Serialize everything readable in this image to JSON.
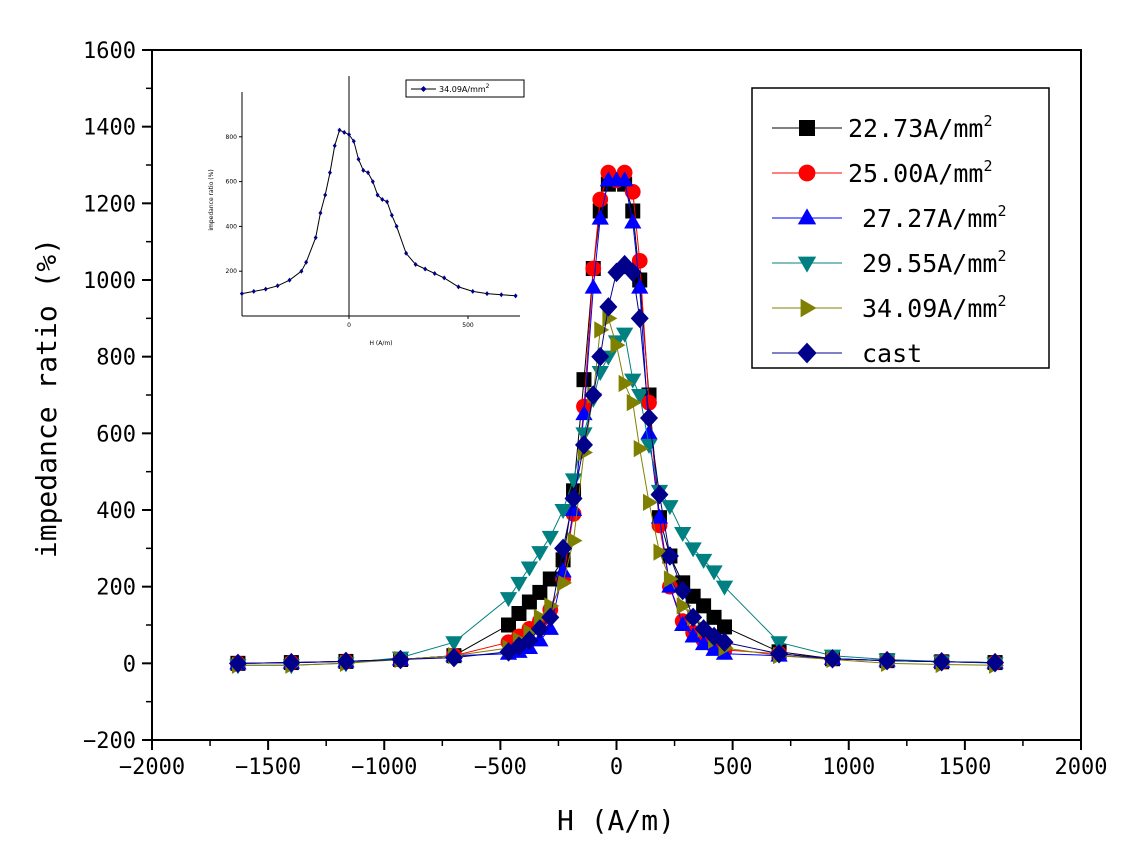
{
  "chart_data": {
    "type": "line",
    "xlabel": "H  (A/m)",
    "ylabel": "impedance ratio (%)",
    "xlim": [
      -2000,
      2000
    ],
    "ylim": [
      -200,
      1600
    ],
    "xticks": [
      -2000,
      -1500,
      -1000,
      -500,
      0,
      500,
      1000,
      1500,
      2000
    ],
    "yticks": [
      -200,
      0,
      200,
      400,
      600,
      800,
      1000,
      1200,
      1400,
      1600
    ],
    "xtick_labels": [
      "−2000",
      "−1500",
      "−1000",
      "−500",
      "0",
      "500",
      "1000",
      "1500",
      "2000"
    ],
    "ytick_labels": [
      "−200",
      "0",
      "200",
      "400",
      "600",
      "800",
      "1000",
      "1200",
      "1400",
      "1600"
    ],
    "legend_position": "top-right",
    "series": [
      {
        "name": "22.73A/mm",
        "superscript": "2",
        "color": "#000000",
        "marker": "square",
        "x": [
          -1630,
          -1400,
          -1165,
          -930,
          -700,
          -465,
          -420,
          -375,
          -330,
          -285,
          -230,
          -185,
          -140,
          -100,
          -70,
          -35,
          0,
          35,
          70,
          100,
          140,
          185,
          230,
          285,
          330,
          375,
          420,
          465,
          700,
          930,
          1165,
          1400,
          1630
        ],
        "y": [
          0,
          2,
          5,
          10,
          20,
          100,
          130,
          160,
          185,
          220,
          270,
          450,
          740,
          1030,
          1180,
          1250,
          1260,
          1250,
          1180,
          1000,
          700,
          380,
          280,
          210,
          175,
          150,
          120,
          95,
          30,
          12,
          7,
          4,
          2
        ]
      },
      {
        "name": "25.00A/mm",
        "superscript": "2",
        "color": "#ff0000",
        "marker": "circle",
        "x": [
          -1630,
          -1400,
          -1165,
          -930,
          -700,
          -465,
          -420,
          -375,
          -330,
          -285,
          -230,
          -185,
          -140,
          -100,
          -70,
          -35,
          0,
          35,
          70,
          100,
          140,
          185,
          230,
          285,
          330,
          375,
          420,
          465,
          700,
          930,
          1165,
          1400,
          1630
        ],
        "y": [
          0,
          2,
          5,
          10,
          20,
          55,
          70,
          90,
          110,
          140,
          220,
          390,
          670,
          1030,
          1210,
          1280,
          1260,
          1280,
          1230,
          1050,
          680,
          360,
          200,
          110,
          80,
          60,
          45,
          35,
          25,
          12,
          7,
          4,
          2
        ]
      },
      {
        "name": "27.27A/mm",
        "superscript": "2",
        "color": "#0000ff",
        "marker": "triangle-up",
        "x": [
          -1630,
          -1400,
          -1165,
          -930,
          -700,
          -465,
          -420,
          -375,
          -330,
          -285,
          -230,
          -185,
          -140,
          -100,
          -70,
          -35,
          0,
          35,
          70,
          100,
          140,
          185,
          230,
          285,
          330,
          375,
          420,
          465,
          700,
          930,
          1165,
          1400,
          1630
        ],
        "y": [
          0,
          2,
          5,
          10,
          20,
          25,
          30,
          40,
          60,
          90,
          240,
          400,
          650,
          980,
          1160,
          1260,
          1260,
          1260,
          1150,
          980,
          600,
          380,
          200,
          100,
          70,
          50,
          35,
          25,
          20,
          12,
          7,
          4,
          2
        ]
      },
      {
        "name": "29.55A/mm",
        "superscript": "2",
        "color": "#008080",
        "marker": "triangle-down",
        "x": [
          -1630,
          -1400,
          -1165,
          -930,
          -700,
          -465,
          -420,
          -375,
          -330,
          -285,
          -230,
          -185,
          -140,
          -100,
          -70,
          -35,
          0,
          35,
          70,
          100,
          140,
          185,
          230,
          285,
          330,
          375,
          420,
          465,
          700,
          930,
          1165,
          1400,
          1630
        ],
        "y": [
          -5,
          -5,
          0,
          15,
          55,
          170,
          210,
          250,
          290,
          330,
          400,
          480,
          600,
          690,
          760,
          800,
          840,
          860,
          740,
          700,
          570,
          450,
          410,
          340,
          300,
          270,
          240,
          200,
          55,
          20,
          10,
          5,
          0
        ]
      },
      {
        "name": "34.09A/mm",
        "superscript": "2",
        "color": "#808000",
        "marker": "triangle-right",
        "x": [
          -1630,
          -1400,
          -1165,
          -930,
          -700,
          -465,
          -420,
          -375,
          -330,
          -285,
          -230,
          -185,
          -140,
          -100,
          -70,
          -35,
          0,
          35,
          70,
          100,
          140,
          185,
          230,
          285,
          330,
          375,
          420,
          465,
          700,
          930,
          1165,
          1400,
          1630
        ],
        "y": [
          -5,
          -5,
          0,
          10,
          20,
          40,
          60,
          80,
          120,
          150,
          210,
          320,
          550,
          700,
          870,
          900,
          830,
          730,
          680,
          560,
          420,
          290,
          220,
          150,
          120,
          90,
          60,
          40,
          20,
          10,
          0,
          -3,
          -5
        ]
      },
      {
        "name": "cast",
        "superscript": "",
        "color": "#00008b",
        "marker": "diamond",
        "x": [
          -1630,
          -1400,
          -1165,
          -930,
          -700,
          -465,
          -420,
          -375,
          -330,
          -285,
          -230,
          -185,
          -140,
          -100,
          -70,
          -35,
          0,
          35,
          70,
          100,
          140,
          185,
          230,
          285,
          330,
          375,
          420,
          465,
          700,
          930,
          1165,
          1400,
          1630
        ],
        "y": [
          0,
          2,
          5,
          10,
          15,
          30,
          45,
          60,
          90,
          120,
          300,
          430,
          570,
          700,
          800,
          930,
          1020,
          1040,
          1020,
          900,
          640,
          440,
          280,
          190,
          120,
          90,
          70,
          55,
          25,
          12,
          7,
          4,
          2
        ]
      }
    ],
    "inset": {
      "xlabel": "H (A/m)",
      "ylabel": "impedance ratio (%)",
      "legend": "34.09A/mm",
      "legend_superscript": "2",
      "xtick_labels": [
        "0",
        "500"
      ],
      "ytick_labels": [
        "200",
        "400",
        "600",
        "800"
      ],
      "x": [
        -450,
        -400,
        -350,
        -300,
        -250,
        -200,
        -180,
        -140,
        -120,
        -100,
        -80,
        -60,
        -40,
        -20,
        0,
        20,
        40,
        60,
        80,
        100,
        120,
        140,
        160,
        180,
        200,
        240,
        280,
        320,
        360,
        400,
        460,
        520,
        580,
        640,
        700
      ],
      "y": [
        100,
        110,
        120,
        135,
        160,
        200,
        240,
        350,
        460,
        540,
        640,
        760,
        830,
        820,
        810,
        780,
        700,
        650,
        640,
        600,
        540,
        520,
        510,
        450,
        400,
        280,
        230,
        210,
        190,
        170,
        130,
        110,
        100,
        95,
        90
      ]
    }
  }
}
